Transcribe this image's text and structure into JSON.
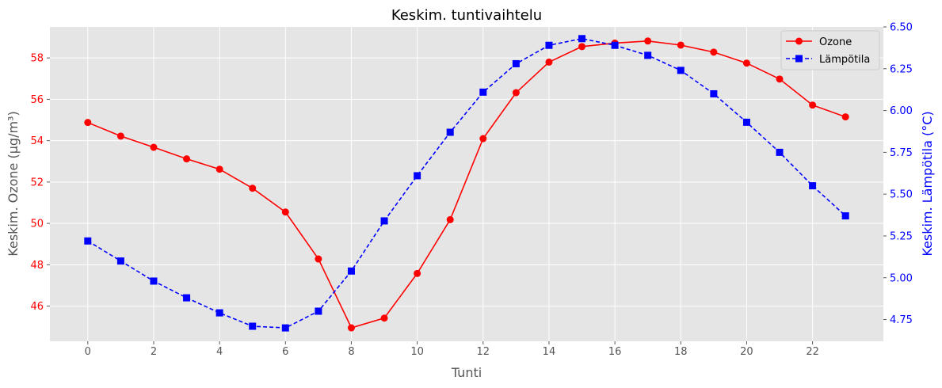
{
  "chart_data": {
    "type": "line",
    "title": "Keskim. tuntivaihtelu",
    "xlabel": "Tunti",
    "ylabel_left": "Keskim. Ozone (µg/m³)",
    "ylabel_right": "Keskim. Lämpötila (°C)",
    "x": [
      0,
      1,
      2,
      3,
      4,
      5,
      6,
      7,
      8,
      9,
      10,
      11,
      12,
      13,
      14,
      15,
      16,
      17,
      18,
      19,
      20,
      21,
      22,
      23
    ],
    "xticks": [
      "0",
      "2",
      "4",
      "6",
      "8",
      "10",
      "12",
      "14",
      "16",
      "18",
      "20",
      "22"
    ],
    "xlim": [
      -1.15,
      24.15
    ],
    "ylim_left": [
      44.3,
      59.5
    ],
    "ylim_right": [
      4.62,
      6.5
    ],
    "yticks_left": [
      "46",
      "48",
      "50",
      "52",
      "54",
      "56",
      "58"
    ],
    "yticks_right": [
      "4.75",
      "5.00",
      "5.25",
      "5.50",
      "5.75",
      "6.00",
      "6.25",
      "6.50"
    ],
    "grid": true,
    "legend_position": "top-right",
    "series": [
      {
        "name": "Ozone",
        "axis": "left",
        "color": "#ff0000",
        "marker": "circle",
        "linestyle": "solid",
        "values": [
          54.88,
          54.22,
          53.68,
          53.12,
          52.62,
          51.7,
          50.55,
          48.28,
          44.95,
          45.42,
          47.58,
          50.18,
          54.1,
          56.32,
          57.8,
          58.55,
          58.72,
          58.82,
          58.62,
          58.28,
          57.75,
          56.98,
          55.72,
          55.15
        ]
      },
      {
        "name": "Lämpötila",
        "axis": "right",
        "color": "#0000ff",
        "marker": "square",
        "linestyle": "dashed",
        "values": [
          5.22,
          5.1,
          4.98,
          4.88,
          4.79,
          4.71,
          4.7,
          4.8,
          5.04,
          5.34,
          5.61,
          5.87,
          6.11,
          6.28,
          6.39,
          6.43,
          6.39,
          6.33,
          6.24,
          6.1,
          5.93,
          5.75,
          5.55,
          5.37
        ]
      }
    ]
  },
  "colors": {
    "plot_background": "#e5e5e5",
    "grid": "#ffffff",
    "left_axis": "#ff0000",
    "right_axis": "#0000ff",
    "text": "#555555"
  }
}
